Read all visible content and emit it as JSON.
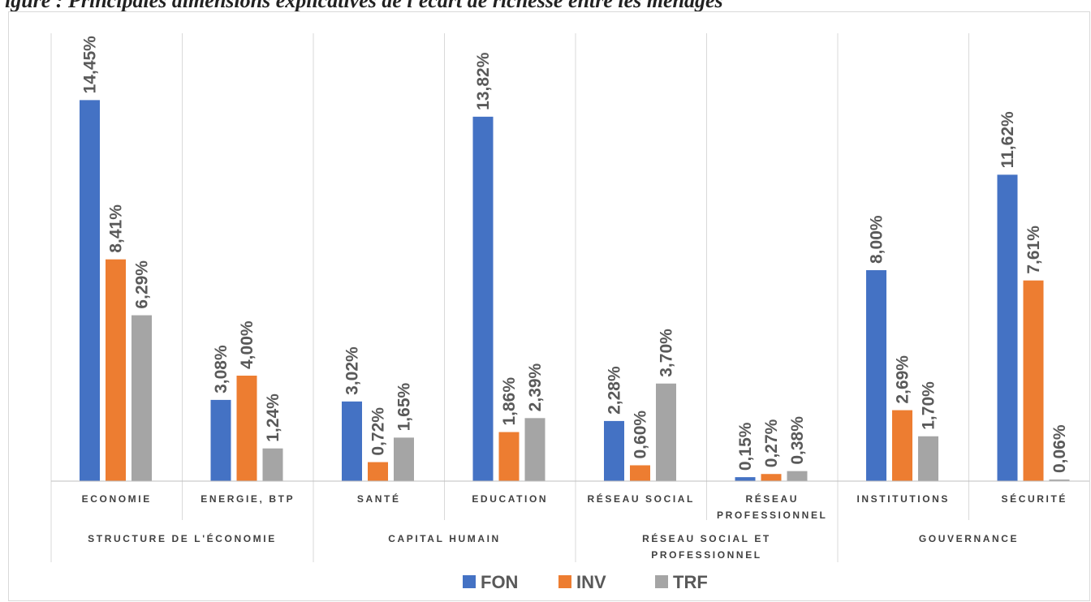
{
  "caption": "igure      : Principales dimensions explicatives de l'écart de richesse entre les ménages",
  "chart_data": {
    "type": "bar",
    "groups": [
      {
        "label": "STRUCTURE DE L'ÉCONOMIE",
        "categories": [
          [
            "ECONOMIE"
          ],
          [
            "ENERGIE, BTP"
          ]
        ]
      },
      {
        "label": "CAPITAL HUMAIN",
        "categories": [
          [
            "SANTÉ"
          ],
          [
            "EDUCATION"
          ]
        ]
      },
      {
        "label_lines": [
          "RÉSEAU SOCIAL ET",
          "PROFESSIONNEL"
        ],
        "categories": [
          [
            "RÉSEAU SOCIAL"
          ],
          [
            "RÉSEAU",
            "PROFESSIONNEL"
          ]
        ]
      },
      {
        "label": "GOUVERNANCE",
        "categories": [
          [
            "INSTITUTIONS"
          ],
          [
            "SÉCURITÉ"
          ]
        ]
      }
    ],
    "series": [
      {
        "name": "FON",
        "color": "#4472c4",
        "values": [
          14.45,
          3.08,
          3.02,
          13.82,
          2.28,
          0.15,
          8.0,
          11.62
        ]
      },
      {
        "name": "INV",
        "color": "#ed7d31",
        "values": [
          8.41,
          4.0,
          0.72,
          1.86,
          0.6,
          0.27,
          2.69,
          7.61
        ]
      },
      {
        "name": "TRF",
        "color": "#a5a5a5",
        "values": [
          6.29,
          1.24,
          1.65,
          2.39,
          3.7,
          0.38,
          1.7,
          0.06
        ]
      }
    ],
    "data_labels": [
      [
        "14,45%",
        "3,08%",
        "3,02%",
        "13,82%",
        "2,28%",
        "0,15%",
        "8,00%",
        "11,62%"
      ],
      [
        "8,41%",
        "4,00%",
        "0,72%",
        "1,86%",
        "0,60%",
        "0,27%",
        "2,69%",
        "7,61%"
      ],
      [
        "6,29%",
        "1,24%",
        "1,65%",
        "2,39%",
        "3,70%",
        "0,38%",
        "1,70%",
        "0,06%"
      ]
    ],
    "ylim": [
      0,
      16
    ],
    "y_axis_visible": false,
    "grid": false,
    "legend_position": "bottom"
  }
}
